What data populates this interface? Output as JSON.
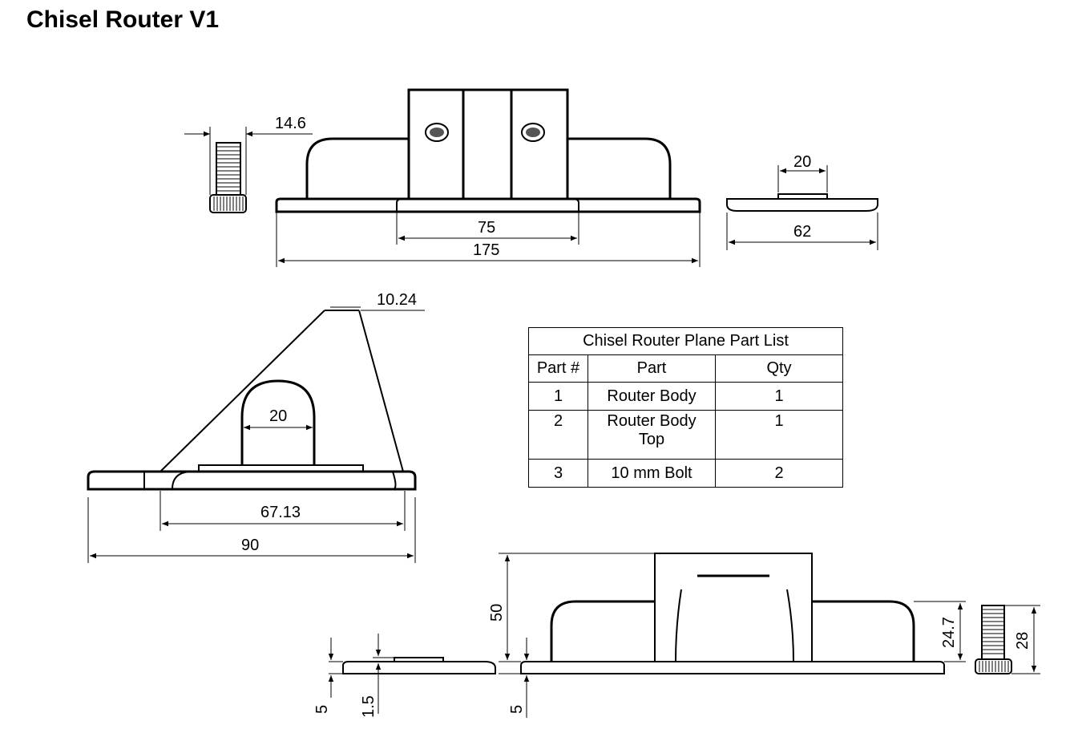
{
  "title": "Chisel Router V1",
  "dimensions": {
    "bolt_width": "14.6",
    "slot_width_top": "75",
    "overall_length": "175",
    "top_width_end": "20",
    "end_width": "62",
    "apex_width": "10.24",
    "arch_width": "20",
    "slope_base": "67.13",
    "side_width": "90",
    "base_thickness_a": "5",
    "top_thickness": "1.5",
    "base_thickness_b": "5",
    "height_total": "50",
    "rail_height": "24.7",
    "bolt_length": "28"
  },
  "parts_table": {
    "caption": "Chisel Router Plane Part List",
    "headers": [
      "Part #",
      "Part",
      "Qty"
    ],
    "rows": [
      {
        "num": "1",
        "part": "Router Body",
        "part2": "",
        "qty": "1"
      },
      {
        "num": "2",
        "part": "Router Body",
        "part2": "Top",
        "qty": "1"
      },
      {
        "num": "3",
        "part": "10 mm Bolt",
        "part2": "",
        "qty": "2"
      }
    ]
  }
}
